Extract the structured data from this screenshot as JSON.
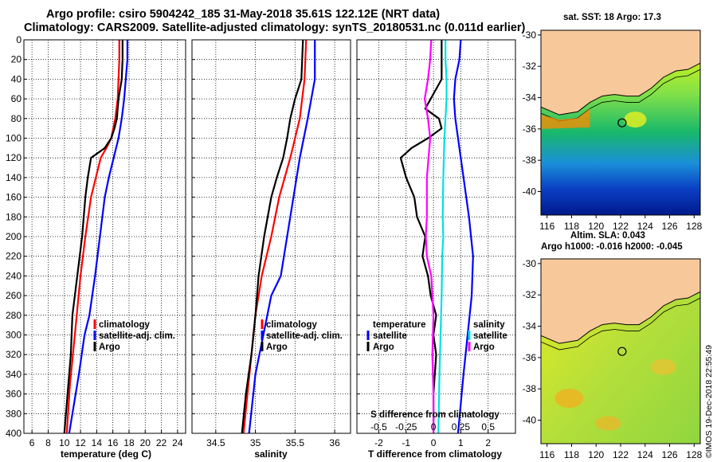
{
  "header": {
    "line1": "Argo profile: csiro 5904242_185 31-May-2018 35.61S 122.12E (NRT data)",
    "line2": "Climatology: CARS2009. Satellite-adjusted climatology: synTS_20180531.nc (0.011d earlier)"
  },
  "colors": {
    "climatology": "#ff0000",
    "satellite": "#0000ff",
    "argo": "#000000",
    "t_diff": "#ff00ff",
    "s_diff": "#00e0e0",
    "land": "#f7c89a"
  },
  "chart_data": [
    {
      "type": "line",
      "name": "temperature-panel",
      "xlabel": "temperature (deg C)",
      "ylabel": "",
      "xlim": [
        5,
        25
      ],
      "ylim": [
        400,
        0
      ],
      "x_ticks": [
        6,
        8,
        10,
        12,
        14,
        16,
        18,
        20,
        22,
        24
      ],
      "y_ticks": [
        0,
        20,
        40,
        60,
        80,
        100,
        120,
        140,
        160,
        180,
        200,
        220,
        240,
        260,
        280,
        300,
        320,
        340,
        360,
        380,
        400
      ],
      "grid": true,
      "legend": [
        "climatology",
        "satellite-adj. clim.",
        "Argo"
      ],
      "series": [
        {
          "name": "climatology",
          "color": "#ff0000",
          "depth": [
            0,
            20,
            40,
            60,
            80,
            100,
            110,
            120,
            140,
            160,
            200,
            240,
            300,
            350,
            400
          ],
          "values": [
            16.8,
            16.8,
            16.7,
            16.6,
            16.3,
            15.8,
            15.2,
            14.5,
            13.9,
            13.3,
            12.6,
            12.0,
            11.3,
            10.7,
            10.3
          ]
        },
        {
          "name": "satellite-adj. clim.",
          "color": "#0000ff",
          "depth": [
            0,
            20,
            40,
            60,
            80,
            100,
            120,
            140,
            160,
            200,
            240,
            280,
            300,
            340,
            400
          ],
          "values": [
            17.8,
            17.8,
            17.6,
            17.4,
            17.1,
            16.7,
            16.1,
            15.5,
            15.0,
            14.4,
            13.8,
            13.1,
            12.5,
            11.8,
            10.6
          ]
        },
        {
          "name": "Argo",
          "color": "#000000",
          "depth": [
            0,
            20,
            40,
            50,
            60,
            80,
            90,
            100,
            110,
            120,
            140,
            160,
            200,
            240,
            280,
            320,
            360,
            400
          ],
          "values": [
            17.2,
            17.2,
            17.1,
            16.9,
            16.7,
            16.5,
            16.2,
            15.8,
            15.0,
            13.3,
            12.9,
            12.6,
            12.2,
            11.6,
            11.0,
            10.8,
            10.4,
            10.0
          ]
        }
      ]
    },
    {
      "type": "line",
      "name": "salinity-panel",
      "xlabel": "salinity",
      "ylabel": "",
      "xlim": [
        34.2,
        36.2
      ],
      "ylim": [
        400,
        0
      ],
      "x_ticks": [
        34.5,
        35,
        35.5,
        36
      ],
      "x_tick_labels": [
        "34.5",
        "35",
        "35.5",
        "36"
      ],
      "grid": true,
      "legend": [
        "climatology",
        "satellite-adj. clim.",
        "Argo"
      ],
      "series": [
        {
          "name": "climatology",
          "color": "#ff0000",
          "depth": [
            0,
            40,
            80,
            100,
            120,
            160,
            200,
            240,
            280,
            320,
            360,
            400
          ],
          "values": [
            35.64,
            35.62,
            35.56,
            35.5,
            35.44,
            35.3,
            35.2,
            35.08,
            35.0,
            34.95,
            34.9,
            34.85
          ]
        },
        {
          "name": "satellite-adj. clim.",
          "color": "#0000ff",
          "depth": [
            0,
            40,
            80,
            120,
            160,
            200,
            240,
            260,
            300,
            340,
            400
          ],
          "values": [
            35.75,
            35.75,
            35.66,
            35.56,
            35.48,
            35.4,
            35.32,
            35.2,
            35.1,
            35.0,
            34.92
          ]
        },
        {
          "name": "Argo",
          "color": "#000000",
          "depth": [
            0,
            40,
            60,
            80,
            100,
            120,
            140,
            160,
            200,
            240,
            280,
            320,
            360,
            400
          ],
          "values": [
            35.6,
            35.58,
            35.5,
            35.44,
            35.4,
            35.35,
            35.27,
            35.2,
            35.11,
            35.04,
            35.0,
            34.95,
            34.88,
            34.83
          ]
        }
      ]
    },
    {
      "type": "line",
      "name": "difference-panel",
      "xlabel": "T difference from climatology",
      "top_xlabel": "S difference from climatology",
      "ylabel": "",
      "xlim": [
        -2.8,
        3.0
      ],
      "ylim": [
        400,
        0
      ],
      "x_ticks": [
        -2,
        -1,
        0,
        1,
        2
      ],
      "x_tick_labels": [
        "-2",
        "-1",
        "0",
        "1",
        "2"
      ],
      "s_ticks": [
        -0.5,
        -0.25,
        0,
        0.25,
        0.5
      ],
      "s_tick_labels": [
        "-0.5",
        "-0.25",
        "0",
        "0.25",
        "0.5"
      ],
      "s_scale": 4,
      "grid": true,
      "legend_left": {
        "title": "temperature",
        "items": [
          "satellite",
          "Argo"
        ]
      },
      "legend_right": {
        "title": "salinity",
        "items": [
          "satellite",
          "Argo"
        ]
      },
      "series": [
        {
          "name": "temperature satellite",
          "color": "#0000ff",
          "depth": [
            0,
            20,
            40,
            60,
            80,
            100,
            140,
            180,
            220,
            260,
            300,
            340,
            400
          ],
          "values": [
            1.0,
            0.95,
            0.8,
            0.75,
            0.8,
            0.9,
            1.1,
            1.3,
            1.45,
            1.4,
            1.25,
            1.1,
            0.9
          ]
        },
        {
          "name": "temperature Argo",
          "color": "#000000",
          "depth": [
            0,
            20,
            40,
            60,
            70,
            80,
            90,
            100,
            110,
            120,
            140,
            160,
            180,
            200,
            220,
            240,
            260,
            280,
            300,
            320,
            360,
            400
          ],
          "values": [
            0.3,
            0.3,
            0.3,
            -0.1,
            -0.3,
            0.2,
            0.3,
            -0.2,
            -0.8,
            -1.2,
            -1.0,
            -0.7,
            -0.6,
            -0.3,
            -0.4,
            -0.2,
            -0.1,
            0.1,
            0.0,
            0.1,
            0.0,
            0.0
          ]
        },
        {
          "name": "salinity satellite",
          "color": "#00e0e0",
          "depth": [
            0,
            20,
            40,
            60,
            80,
            100,
            140,
            180,
            200,
            220,
            260,
            300,
            340,
            400
          ],
          "values": [
            0.11,
            0.11,
            0.12,
            0.12,
            0.11,
            0.1,
            0.09,
            0.085,
            0.09,
            0.08,
            0.075,
            0.065,
            0.055,
            0.045
          ]
        },
        {
          "name": "salinity Argo",
          "color": "#ff00ff",
          "depth": [
            0,
            20,
            40,
            60,
            80,
            100,
            140,
            180,
            200,
            220,
            240,
            280,
            320,
            360,
            400
          ],
          "values": [
            -0.02,
            -0.03,
            -0.05,
            -0.08,
            -0.05,
            -0.03,
            -0.06,
            -0.06,
            -0.07,
            -0.06,
            -0.02,
            0.0,
            -0.01,
            0.0,
            0.0
          ]
        }
      ]
    },
    {
      "type": "heatmap",
      "name": "sst-map",
      "title": "sat. SST: 18 Argo: 17.3",
      "xlim": [
        115.5,
        128.5
      ],
      "ylim": [
        -41.5,
        -29.7
      ],
      "x_ticks": [
        116,
        118,
        120,
        122,
        124,
        126,
        128
      ],
      "y_ticks": [
        -30,
        -32,
        -34,
        -36,
        -38,
        -40
      ],
      "argo_position": [
        122.12,
        -35.61
      ]
    },
    {
      "type": "heatmap",
      "name": "sla-map",
      "title": "Altim. SLA: 0.043",
      "subtitle": "Argo h1000: -0.016 h2000: -0.045",
      "xlim": [
        115.5,
        128.5
      ],
      "ylim": [
        -41.5,
        -29.7
      ],
      "x_ticks": [
        116,
        118,
        120,
        122,
        124,
        126,
        128
      ],
      "y_ticks": [
        -30,
        -32,
        -34,
        -36,
        -38,
        -40
      ],
      "argo_position": [
        122.12,
        -35.61
      ]
    }
  ],
  "legends": {
    "clim": "climatology",
    "sat_adj": "satellite-adj. clim.",
    "argo": "Argo",
    "temperature": "temperature",
    "salinity": "salinity",
    "satellite": "satellite"
  },
  "stamp": "©IMOS 19-Dec-2018 22:55:49"
}
